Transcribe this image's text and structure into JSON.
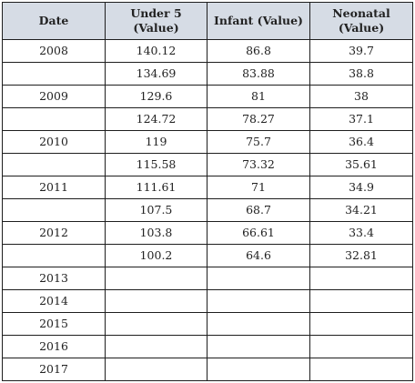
{
  "table": {
    "headers": [
      "Date",
      "Under 5 (Value)",
      "Infant (Value)",
      "Neonatal (Value)"
    ],
    "rows": [
      [
        "2008",
        "140.12",
        "86.8",
        "39.7"
      ],
      [
        "",
        "134.69",
        "83.88",
        "38.8"
      ],
      [
        "2009",
        "129.6",
        "81",
        "38"
      ],
      [
        "",
        "124.72",
        "78.27",
        "37.1"
      ],
      [
        "2010",
        "119",
        "75.7",
        "36.4"
      ],
      [
        "",
        "115.58",
        "73.32",
        "35.61"
      ],
      [
        "2011",
        "111.61",
        "71",
        "34.9"
      ],
      [
        "",
        "107.5",
        "68.7",
        "34.21"
      ],
      [
        "2012",
        "103.8",
        "66.61",
        "33.4"
      ],
      [
        "",
        "100.2",
        "64.6",
        "32.81"
      ],
      [
        "2013",
        "",
        "",
        ""
      ],
      [
        "2014",
        "",
        "",
        ""
      ],
      [
        "2015",
        "",
        "",
        ""
      ],
      [
        "2016",
        "",
        "",
        ""
      ],
      [
        "2017",
        "",
        "",
        ""
      ]
    ]
  },
  "colors": {
    "header_background": "#d6dce5",
    "border": "#1e1e1e",
    "text": "#222222"
  }
}
